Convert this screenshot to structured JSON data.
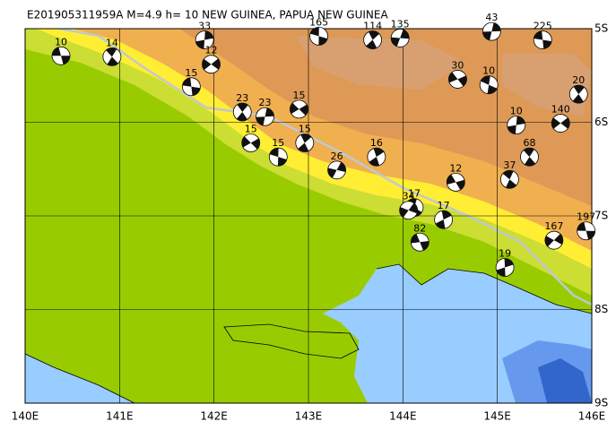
{
  "map": {
    "title": "E201905311959A M=4.9 h= 10 NEW GUINEA, PAPUA NEW GUINEA",
    "xlim": [
      140,
      146
    ],
    "ylim": [
      -9,
      -5
    ],
    "xticks": [
      {
        "value": 140,
        "label": "140E"
      },
      {
        "value": 141,
        "label": "141E"
      },
      {
        "value": 142,
        "label": "142E"
      },
      {
        "value": 143,
        "label": "143E"
      },
      {
        "value": 144,
        "label": "144E"
      },
      {
        "value": 145,
        "label": "145E"
      },
      {
        "value": 146,
        "label": "146E"
      }
    ],
    "yticks": [
      {
        "value": -5,
        "label": "5S"
      },
      {
        "value": -6,
        "label": "6S"
      },
      {
        "value": -7,
        "label": "7S"
      },
      {
        "value": -8,
        "label": "8S"
      },
      {
        "value": -9,
        "label": "9S"
      }
    ],
    "events": [
      {
        "lon": 140.38,
        "lat": -5.29,
        "depth": 10
      },
      {
        "lon": 140.92,
        "lat": -5.3,
        "depth": 14
      },
      {
        "lon": 141.9,
        "lat": -5.12,
        "depth": 33
      },
      {
        "lon": 141.97,
        "lat": -5.38,
        "depth": 12
      },
      {
        "lon": 141.76,
        "lat": -5.62,
        "depth": 15
      },
      {
        "lon": 142.3,
        "lat": -5.89,
        "depth": 23
      },
      {
        "lon": 142.54,
        "lat": -5.94,
        "depth": 23
      },
      {
        "lon": 142.9,
        "lat": -5.86,
        "depth": 15
      },
      {
        "lon": 143.11,
        "lat": -5.08,
        "depth": 165
      },
      {
        "lon": 143.68,
        "lat": -5.12,
        "depth": 114
      },
      {
        "lon": 143.97,
        "lat": -5.1,
        "depth": 135
      },
      {
        "lon": 144.58,
        "lat": -5.54,
        "depth": 30
      },
      {
        "lon": 144.91,
        "lat": -5.6,
        "depth": 10
      },
      {
        "lon": 143.72,
        "lat": -6.37,
        "depth": 16
      },
      {
        "lon": 143.3,
        "lat": -6.51,
        "depth": 26
      },
      {
        "lon": 144.56,
        "lat": -6.64,
        "depth": 12
      },
      {
        "lon": 144.12,
        "lat": -6.91,
        "depth": 17
      },
      {
        "lon": 144.43,
        "lat": -7.04,
        "depth": 17
      },
      {
        "lon": 144.06,
        "lat": -6.94,
        "depth": 34
      },
      {
        "lon": 144.18,
        "lat": -7.28,
        "depth": 82
      },
      {
        "lon": 145.13,
        "lat": -6.61,
        "depth": 37
      },
      {
        "lon": 145.08,
        "lat": -7.55,
        "depth": 19
      },
      {
        "lon": 145.6,
        "lat": -7.26,
        "depth": 167
      },
      {
        "lon": 145.94,
        "lat": -7.16,
        "depth": 197
      },
      {
        "lon": 145.34,
        "lat": -6.37,
        "depth": 68
      },
      {
        "lon": 145.2,
        "lat": -6.03,
        "depth": 10
      },
      {
        "lon": 145.67,
        "lat": -6.01,
        "depth": 140
      },
      {
        "lon": 145.48,
        "lat": -5.12,
        "depth": 225
      },
      {
        "lon": 145.86,
        "lat": -5.7,
        "depth": 20
      },
      {
        "lon": 144.94,
        "lat": -5.03,
        "depth": 43
      },
      {
        "lon": 142.39,
        "lat": -6.22,
        "depth": 15
      },
      {
        "lon": 142.68,
        "lat": -6.37,
        "depth": 15
      },
      {
        "lon": 142.96,
        "lat": -6.22,
        "depth": 15
      }
    ]
  }
}
